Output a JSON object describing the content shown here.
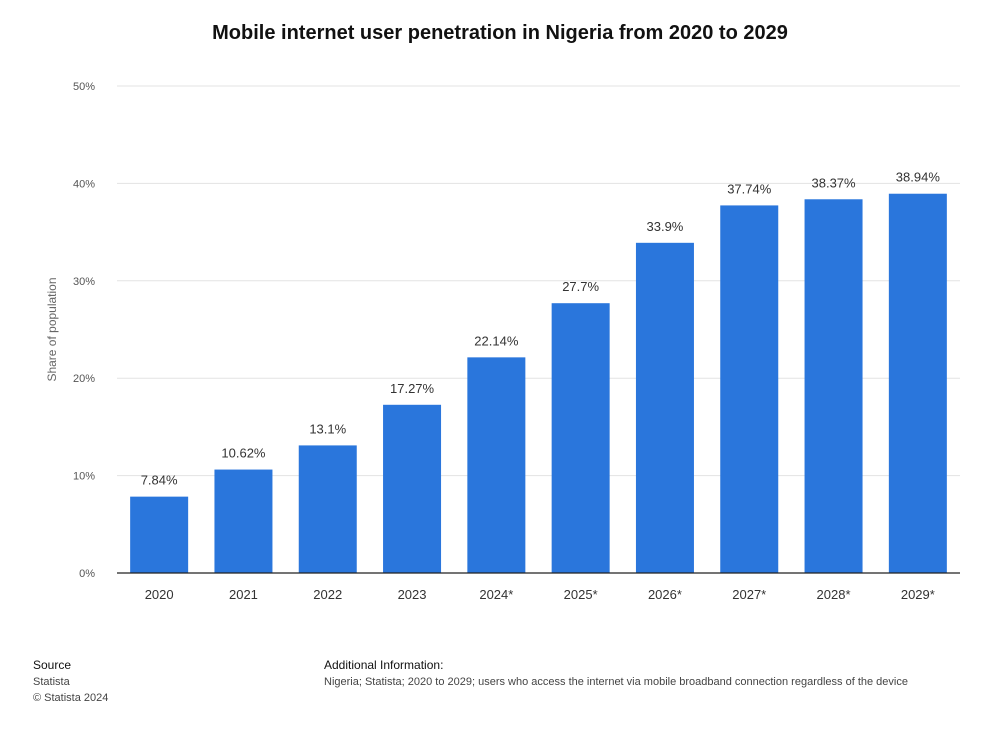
{
  "chart_data": {
    "type": "bar",
    "title": "Mobile internet user penetration in Nigeria from 2020 to 2029",
    "xlabel": "",
    "ylabel": "Share of population",
    "categories": [
      "2020",
      "2021",
      "2022",
      "2023",
      "2024*",
      "2025*",
      "2026*",
      "2027*",
      "2028*",
      "2029*"
    ],
    "values": [
      7.84,
      10.62,
      13.1,
      17.27,
      22.14,
      27.7,
      33.9,
      37.74,
      38.37,
      38.94
    ],
    "value_labels": [
      "7.84%",
      "10.62%",
      "13.1%",
      "17.27%",
      "22.14%",
      "27.7%",
      "33.9%",
      "37.74%",
      "38.37%",
      "38.94%"
    ],
    "ylim": [
      0,
      50
    ],
    "yticks": [
      0,
      10,
      20,
      30,
      40,
      50
    ],
    "ytick_labels": [
      "0%",
      "10%",
      "20%",
      "30%",
      "40%",
      "50%"
    ],
    "grid": true,
    "bar_color": "#2a76dc"
  },
  "footer": {
    "source_heading": "Source",
    "source_name": "Statista",
    "copyright": "© Statista 2024",
    "info_heading": "Additional Information:",
    "info_text": "Nigeria; Statista; 2020 to 2029; users who access the internet via mobile broadband connection regardless of the device"
  }
}
